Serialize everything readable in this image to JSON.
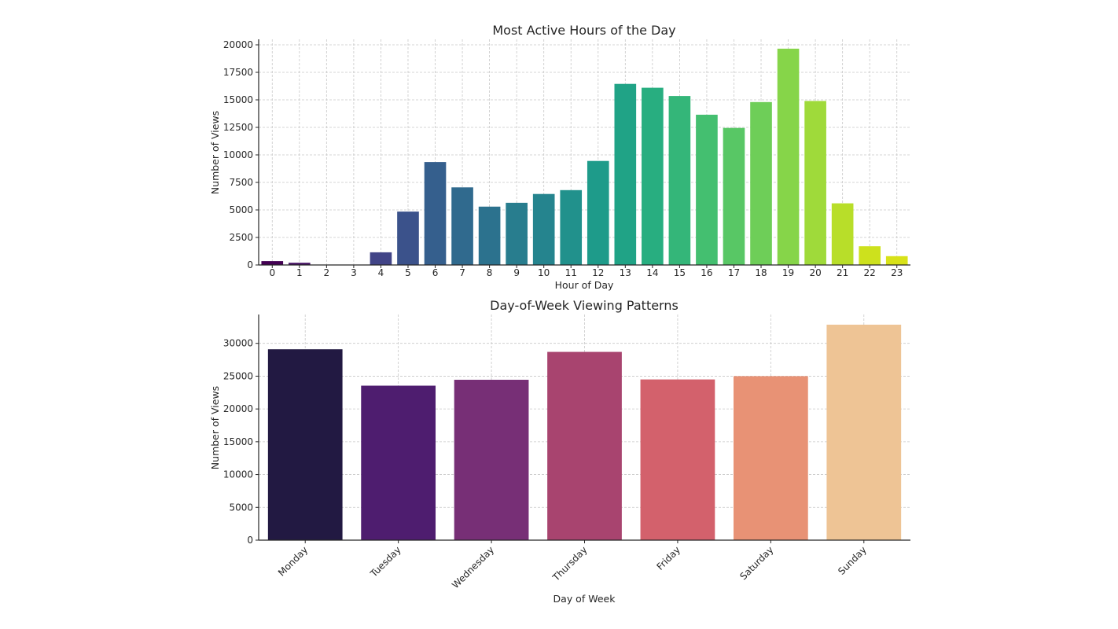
{
  "chart_data": [
    {
      "type": "bar",
      "title": "Most Active Hours of the Day",
      "xlabel": "Hour of Day",
      "ylabel": "Number of Views",
      "categories": [
        "0",
        "1",
        "2",
        "3",
        "4",
        "5",
        "6",
        "7",
        "8",
        "9",
        "10",
        "11",
        "12",
        "13",
        "14",
        "15",
        "16",
        "17",
        "18",
        "19",
        "20",
        "21",
        "22",
        "23"
      ],
      "values": [
        350,
        200,
        0,
        0,
        1150,
        4850,
        9350,
        7050,
        5300,
        5650,
        6450,
        6800,
        9450,
        16450,
        16100,
        15350,
        13650,
        12450,
        14800,
        19650,
        14900,
        5600,
        1700,
        800
      ],
      "ylim": [
        0,
        20500
      ],
      "yticks": [
        0,
        2500,
        5000,
        7500,
        10000,
        12500,
        15000,
        17500,
        20000
      ],
      "colors": [
        "#440154",
        "#471365",
        "#482475",
        "#463480",
        "#414487",
        "#3b528b",
        "#355f8d",
        "#306a8e",
        "#2c728e",
        "#287d8e",
        "#25848e",
        "#21918c",
        "#1e9b8a",
        "#20a386",
        "#28ae80",
        "#34b679",
        "#44bf70",
        "#58c765",
        "#6ece58",
        "#86d549",
        "#9fda3a",
        "#b8de29",
        "#cde11d",
        "#d8e219"
      ],
      "grid": true
    },
    {
      "type": "bar",
      "title": "Day-of-Week Viewing Patterns",
      "xlabel": "Day of Week",
      "ylabel": "Number of Views",
      "categories": [
        "Monday",
        "Tuesday",
        "Wednesday",
        "Thursday",
        "Friday",
        "Saturday",
        "Sunday"
      ],
      "values": [
        29100,
        23550,
        24450,
        28700,
        24500,
        25000,
        32850
      ],
      "ylim": [
        0,
        34400
      ],
      "yticks": [
        0,
        5000,
        10000,
        15000,
        20000,
        25000,
        30000
      ],
      "colors": [
        "#221942",
        "#4e1d6f",
        "#772f76",
        "#a8446f",
        "#d3616c",
        "#e89275",
        "#eec495"
      ],
      "grid": true
    }
  ]
}
